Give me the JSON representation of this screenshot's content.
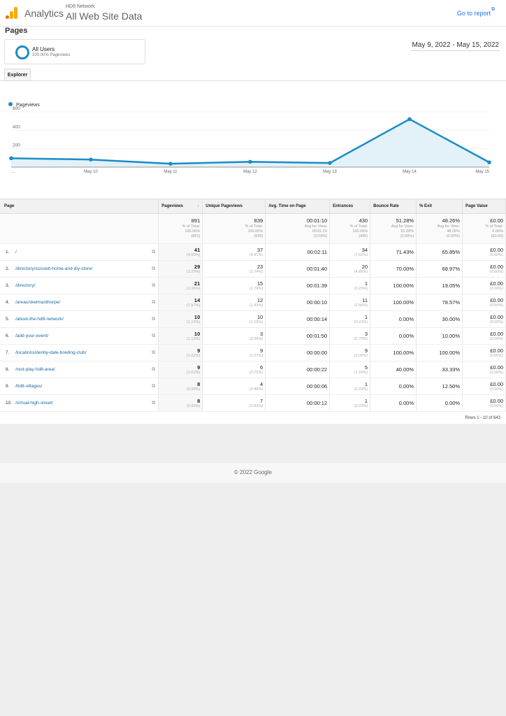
{
  "header": {
    "brand": "Analytics",
    "account": "HD8 Network",
    "property": "All Web Site Data",
    "go_to_report": "Go to report"
  },
  "page_title": "Pages",
  "segment": {
    "name": "All Users",
    "sub": "100.00% Pageviews"
  },
  "date_range": "May 9, 2022 - May 15, 2022",
  "tab": "Explorer",
  "colors": {
    "accent": "#1a8cc4",
    "link": "#1a73e8"
  },
  "chart_data": {
    "type": "area",
    "legend": "Pageviews",
    "x": [
      "…",
      "May 10",
      "May 11",
      "May 12",
      "May 13",
      "May 14",
      "May 15"
    ],
    "values": [
      96,
      82,
      37,
      58,
      45,
      521,
      52
    ],
    "yticks": [
      "200",
      "400",
      "600"
    ],
    "ylim": [
      0,
      600
    ]
  },
  "table": {
    "headers": [
      "Page",
      "Pageviews",
      "Unique Pageviews",
      "Avg. Time on Page",
      "Entrances",
      "Bounce Rate",
      "% Exit",
      "Page Value"
    ],
    "totals": [
      {
        "v": "891",
        "l1": "% of Total:",
        "l2": "100.00%",
        "l3": "(891)"
      },
      {
        "v": "839",
        "l1": "% of Total:",
        "l2": "100.00%",
        "l3": "(839)"
      },
      {
        "v": "00:01:10",
        "l1": "Avg for View:",
        "l2": "00:01:10",
        "l3": "(0.00%)"
      },
      {
        "v": "430",
        "l1": "% of Total:",
        "l2": "100.00%",
        "l3": "(430)"
      },
      {
        "v": "51.28%",
        "l1": "Avg for View:",
        "l2": "51.28%",
        "l3": "(0.00%)"
      },
      {
        "v": "48.26%",
        "l1": "Avg for View:",
        "l2": "48.26%",
        "l3": "(0.00%)"
      },
      {
        "v": "£0.00",
        "l1": "% of Total:",
        "l2": "0.00%",
        "l3": "(£0.00)"
      }
    ],
    "rows": [
      {
        "n": "1.",
        "page": "/",
        "pv": "41",
        "pvp": "(4.60%)",
        "u": "37",
        "up": "(4.41%)",
        "t": "00:02:11",
        "e": "34",
        "ep": "(7.91%)",
        "b": "71.43%",
        "x": "65.85%",
        "val": "£0.00",
        "valp": "(0.00%)"
      },
      {
        "n": "2.",
        "page": "/directory/scissett-home-and-diy-store/",
        "pv": "29",
        "pvp": "(3.25%)",
        "u": "23",
        "up": "(2.74%)",
        "t": "00:01:40",
        "e": "20",
        "ep": "(4.65%)",
        "b": "70.00%",
        "x": "68.97%",
        "val": "£0.00",
        "valp": "(0.00%)"
      },
      {
        "n": "3.",
        "page": "/directory/",
        "pv": "21",
        "pvp": "(2.36%)",
        "u": "15",
        "up": "(1.79%)",
        "t": "00:01:39",
        "e": "1",
        "ep": "(0.23%)",
        "b": "100.00%",
        "x": "19.05%",
        "val": "£0.00",
        "valp": "(0.00%)"
      },
      {
        "n": "4.",
        "page": "/areas/skelmanthorpe/",
        "pv": "14",
        "pvp": "(1.57%)",
        "u": "12",
        "up": "(1.43%)",
        "t": "00:00:10",
        "e": "11",
        "ep": "(2.56%)",
        "b": "100.00%",
        "x": "78.57%",
        "val": "£0.00",
        "valp": "(0.00%)"
      },
      {
        "n": "5.",
        "page": "/about-the-hd8-network/",
        "pv": "10",
        "pvp": "(1.12%)",
        "u": "10",
        "up": "(1.19%)",
        "t": "00:00:14",
        "e": "1",
        "ep": "(0.23%)",
        "b": "0.00%",
        "x": "30.00%",
        "val": "£0.00",
        "valp": "(0.00%)"
      },
      {
        "n": "6.",
        "page": "/add-your-event/",
        "pv": "10",
        "pvp": "(1.12%)",
        "u": "3",
        "up": "(0.36%)",
        "t": "00:01:50",
        "e": "3",
        "ep": "(0.70%)",
        "b": "0.00%",
        "x": "10.00%",
        "val": "£0.00",
        "valp": "(0.00%)"
      },
      {
        "n": "7.",
        "page": "/locations/denby-dale-bowling-club/",
        "pv": "9",
        "pvp": "(1.01%)",
        "u": "9",
        "up": "(1.07%)",
        "t": "00:00:00",
        "e": "9",
        "ep": "(2.09%)",
        "b": "100.00%",
        "x": "100.00%",
        "val": "£0.00",
        "valp": "(0.00%)"
      },
      {
        "n": "8.",
        "page": "/rest-play-hd8-area/",
        "pv": "9",
        "pvp": "(1.01%)",
        "u": "6",
        "up": "(0.72%)",
        "t": "00:00:22",
        "e": "5",
        "ep": "(1.16%)",
        "b": "40.00%",
        "x": "33.33%",
        "val": "£0.00",
        "valp": "(0.00%)"
      },
      {
        "n": "9.",
        "page": "/hd8-villages/",
        "pv": "8",
        "pvp": "(0.90%)",
        "u": "4",
        "up": "(0.48%)",
        "t": "00:00:06",
        "e": "1",
        "ep": "(0.23%)",
        "b": "0.00%",
        "x": "12.50%",
        "val": "£0.00",
        "valp": "(0.00%)"
      },
      {
        "n": "10.",
        "page": "/virtual-high-street/",
        "pv": "8",
        "pvp": "(0.90%)",
        "u": "7",
        "up": "(0.83%)",
        "t": "00:00:12",
        "e": "1",
        "ep": "(0.23%)",
        "b": "0.00%",
        "x": "0.00%",
        "val": "£0.00",
        "valp": "(0.00%)"
      }
    ],
    "rows_info": "Rows 1 - 10 of 643"
  },
  "footer": "© 2022 Google"
}
